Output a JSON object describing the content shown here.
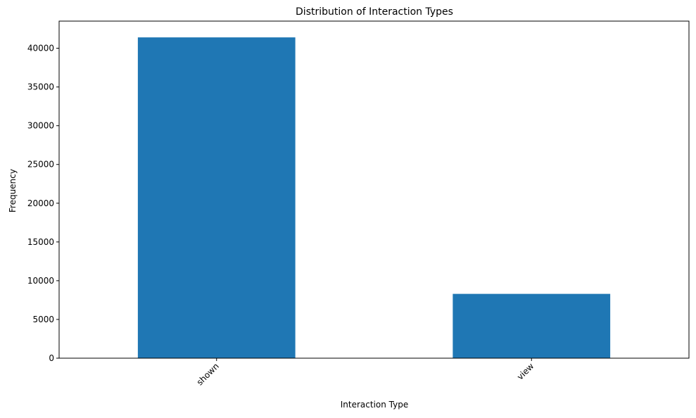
{
  "chart_data": {
    "type": "bar",
    "title": "Distribution of Interaction Types",
    "xlabel": "Interaction Type",
    "ylabel": "Frequency",
    "categories": [
      "shown",
      "view"
    ],
    "values": [
      41400,
      8300
    ],
    "ylim": [
      0,
      43500
    ],
    "yticks": [
      0,
      5000,
      10000,
      15000,
      20000,
      25000,
      30000,
      35000,
      40000
    ],
    "ytick_labels": [
      "0",
      "5000",
      "10000",
      "15000",
      "20000",
      "25000",
      "30000",
      "35000",
      "40000"
    ],
    "bar_color": "#1f77b4",
    "grid": false,
    "legend": "none"
  }
}
